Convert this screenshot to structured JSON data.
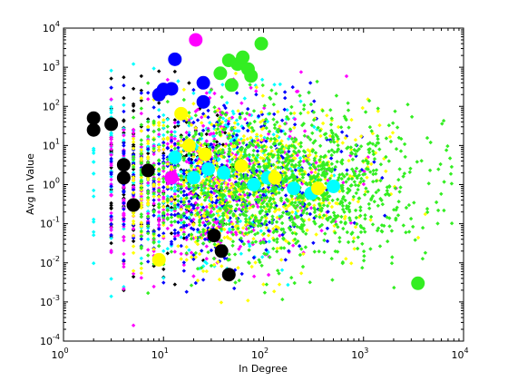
{
  "chart_data": {
    "type": "scatter",
    "title": "",
    "xlabel": "In Degree",
    "ylabel": "Avg In Value",
    "xscale": "log",
    "yscale": "log",
    "xlim": [
      1,
      10000
    ],
    "ylim": [
      0.0001,
      10000
    ],
    "grid": false,
    "legend": "none",
    "x_tick_labels": [
      {
        "base": "10",
        "exp": "0"
      },
      {
        "base": "10",
        "exp": "1"
      },
      {
        "base": "10",
        "exp": "2"
      },
      {
        "base": "10",
        "exp": "3"
      },
      {
        "base": "10",
        "exp": "4"
      }
    ],
    "y_tick_labels": [
      {
        "base": "10",
        "exp": "-4"
      },
      {
        "base": "10",
        "exp": "-3"
      },
      {
        "base": "10",
        "exp": "-2"
      },
      {
        "base": "10",
        "exp": "-1"
      },
      {
        "base": "10",
        "exp": "0"
      },
      {
        "base": "10",
        "exp": "1"
      },
      {
        "base": "10",
        "exp": "2"
      },
      {
        "base": "10",
        "exp": "3"
      },
      {
        "base": "10",
        "exp": "4"
      }
    ],
    "series": [
      {
        "color": "#000000",
        "small_points": {
          "x_range": [
            3,
            50
          ],
          "y_range": [
            0.0002,
            800
          ],
          "count": 220,
          "x_center": 8,
          "y_center": 2,
          "x_spread": 0.45,
          "y_spread": 1.1
        },
        "large_points": [
          {
            "x": 2,
            "y": 50
          },
          {
            "x": 2,
            "y": 25
          },
          {
            "x": 3,
            "y": 35
          },
          {
            "x": 4,
            "y": 3.2
          },
          {
            "x": 4,
            "y": 1.5
          },
          {
            "x": 5,
            "y": 0.3
          },
          {
            "x": 7,
            "y": 2.3
          },
          {
            "x": 32,
            "y": 0.05
          },
          {
            "x": 38,
            "y": 0.02
          },
          {
            "x": 45,
            "y": 0.005
          }
        ]
      },
      {
        "color": "#00ffff",
        "small_points": {
          "x_range": [
            2,
            800
          ],
          "y_range": [
            0.0003,
            1500
          ],
          "count": 450,
          "x_center": 20,
          "y_center": 1.5,
          "x_spread": 0.55,
          "y_spread": 1.05
        },
        "large_points": [
          {
            "x": 13,
            "y": 5
          },
          {
            "x": 20,
            "y": 1.5
          },
          {
            "x": 28,
            "y": 2.5
          },
          {
            "x": 40,
            "y": 2
          },
          {
            "x": 80,
            "y": 1
          },
          {
            "x": 110,
            "y": 1.5
          },
          {
            "x": 200,
            "y": 0.8
          },
          {
            "x": 300,
            "y": 0.6
          },
          {
            "x": 500,
            "y": 0.9
          }
        ]
      },
      {
        "color": "#ff00ff",
        "small_points": {
          "x_range": [
            3,
            3000
          ],
          "y_range": [
            0.0002,
            800
          ],
          "count": 550,
          "x_center": 25,
          "y_center": 1,
          "x_spread": 0.6,
          "y_spread": 1.05
        },
        "large_points": [
          {
            "x": 21,
            "y": 5000
          },
          {
            "x": 12,
            "y": 1.5
          }
        ]
      },
      {
        "color": "#0000ff",
        "small_points": {
          "x_range": [
            3,
            2000
          ],
          "y_range": [
            0.0002,
            500
          ],
          "count": 500,
          "x_center": 35,
          "y_center": 1,
          "x_spread": 0.6,
          "y_spread": 1.0
        },
        "large_points": [
          {
            "x": 9,
            "y": 200
          },
          {
            "x": 10,
            "y": 270
          },
          {
            "x": 12,
            "y": 280
          },
          {
            "x": 13,
            "y": 1600
          },
          {
            "x": 25,
            "y": 400
          },
          {
            "x": 25,
            "y": 130
          }
        ]
      },
      {
        "color": "#ffff00",
        "small_points": {
          "x_range": [
            5,
            5000
          ],
          "y_range": [
            0.0002,
            800
          ],
          "count": 700,
          "x_center": 60,
          "y_center": 1.2,
          "x_spread": 0.65,
          "y_spread": 1.0
        },
        "large_points": [
          {
            "x": 9,
            "y": 0.012
          },
          {
            "x": 15,
            "y": 65
          },
          {
            "x": 18,
            "y": 10
          },
          {
            "x": 26,
            "y": 6
          },
          {
            "x": 60,
            "y": 3
          },
          {
            "x": 130,
            "y": 1.5
          },
          {
            "x": 350,
            "y": 0.8
          }
        ]
      },
      {
        "color": "#33ee22",
        "small_points": {
          "x_range": [
            5,
            8000
          ],
          "y_range": [
            0.0002,
            600
          ],
          "count": 1300,
          "x_center": 150,
          "y_center": 1,
          "x_spread": 0.7,
          "y_spread": 1.0
        },
        "large_points": [
          {
            "x": 37,
            "y": 700
          },
          {
            "x": 45,
            "y": 1500
          },
          {
            "x": 48,
            "y": 350
          },
          {
            "x": 55,
            "y": 1200
          },
          {
            "x": 62,
            "y": 1800
          },
          {
            "x": 70,
            "y": 900
          },
          {
            "x": 75,
            "y": 600
          },
          {
            "x": 95,
            "y": 4000
          },
          {
            "x": 3500,
            "y": 0.003
          }
        ]
      }
    ]
  }
}
